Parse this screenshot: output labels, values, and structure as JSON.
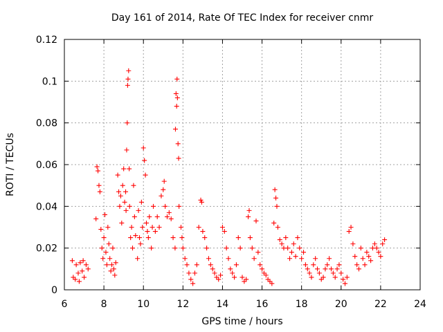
{
  "chart_data": {
    "type": "scatter",
    "title": "Day 161 of 2014, Rate Of TEC Index for receiver cnmr",
    "xlabel": "GPS time / hours",
    "ylabel": "ROTI / TECUs",
    "xlim": [
      6,
      24
    ],
    "ylim": [
      0,
      0.12
    ],
    "x_ticks": [
      6,
      8,
      10,
      12,
      14,
      16,
      18,
      20,
      22,
      24
    ],
    "x_tick_labels": [
      "6",
      "8",
      "10",
      "12",
      "14",
      "16",
      "18",
      "20",
      "22",
      "24"
    ],
    "y_ticks": [
      0,
      0.02,
      0.04,
      0.06,
      0.08,
      0.1,
      0.12
    ],
    "y_tick_labels": [
      "0",
      "0.02",
      "0.04",
      "0.06",
      "0.08",
      "0.1",
      "0.12"
    ],
    "grid": true,
    "marker": "+",
    "color": "#ff0000",
    "series": [
      {
        "name": "ROTI",
        "points": [
          [
            6.4,
            0.014
          ],
          [
            6.45,
            0.006
          ],
          [
            6.55,
            0.005
          ],
          [
            6.6,
            0.012
          ],
          [
            6.7,
            0.008
          ],
          [
            6.75,
            0.004
          ],
          [
            6.8,
            0.013
          ],
          [
            6.9,
            0.009
          ],
          [
            6.95,
            0.014
          ],
          [
            7.0,
            0.006
          ],
          [
            7.1,
            0.012
          ],
          [
            7.2,
            0.01
          ],
          [
            7.6,
            0.034
          ],
          [
            7.65,
            0.059
          ],
          [
            7.7,
            0.057
          ],
          [
            7.75,
            0.05
          ],
          [
            7.8,
            0.047
          ],
          [
            7.85,
            0.029
          ],
          [
            7.9,
            0.02
          ],
          [
            7.95,
            0.015
          ],
          [
            8.0,
            0.025
          ],
          [
            8.05,
            0.036
          ],
          [
            8.1,
            0.018
          ],
          [
            8.15,
            0.012
          ],
          [
            8.2,
            0.03
          ],
          [
            8.25,
            0.022
          ],
          [
            8.3,
            0.015
          ],
          [
            8.35,
            0.009
          ],
          [
            8.4,
            0.012
          ],
          [
            8.45,
            0.02
          ],
          [
            8.5,
            0.01
          ],
          [
            8.55,
            0.007
          ],
          [
            8.6,
            0.013
          ],
          [
            8.7,
            0.055
          ],
          [
            8.75,
            0.047
          ],
          [
            8.8,
            0.04
          ],
          [
            8.85,
            0.045
          ],
          [
            8.9,
            0.032
          ],
          [
            8.95,
            0.05
          ],
          [
            9.0,
            0.058
          ],
          [
            9.05,
            0.042
          ],
          [
            9.1,
            0.047
          ],
          [
            9.12,
            0.038
          ],
          [
            9.15,
            0.067
          ],
          [
            9.18,
            0.08
          ],
          [
            9.2,
            0.098
          ],
          [
            9.22,
            0.101
          ],
          [
            9.25,
            0.105
          ],
          [
            9.28,
            0.058
          ],
          [
            9.3,
            0.04
          ],
          [
            9.35,
            0.025
          ],
          [
            9.4,
            0.03
          ],
          [
            9.45,
            0.02
          ],
          [
            9.5,
            0.05
          ],
          [
            9.55,
            0.035
          ],
          [
            9.6,
            0.026
          ],
          [
            9.7,
            0.015
          ],
          [
            9.75,
            0.038
          ],
          [
            9.8,
            0.025
          ],
          [
            9.85,
            0.022
          ],
          [
            9.9,
            0.042
          ],
          [
            9.95,
            0.03
          ],
          [
            10.0,
            0.068
          ],
          [
            10.05,
            0.062
          ],
          [
            10.1,
            0.055
          ],
          [
            10.15,
            0.032
          ],
          [
            10.2,
            0.028
          ],
          [
            10.25,
            0.025
          ],
          [
            10.3,
            0.035
          ],
          [
            10.4,
            0.02
          ],
          [
            10.45,
            0.03
          ],
          [
            10.5,
            0.04
          ],
          [
            10.6,
            0.028
          ],
          [
            10.7,
            0.035
          ],
          [
            10.8,
            0.03
          ],
          [
            10.9,
            0.045
          ],
          [
            11.0,
            0.048
          ],
          [
            11.05,
            0.052
          ],
          [
            11.1,
            0.04
          ],
          [
            11.2,
            0.035
          ],
          [
            11.3,
            0.037
          ],
          [
            11.4,
            0.034
          ],
          [
            11.5,
            0.025
          ],
          [
            11.6,
            0.02
          ],
          [
            11.62,
            0.077
          ],
          [
            11.65,
            0.094
          ],
          [
            11.68,
            0.088
          ],
          [
            11.7,
            0.101
          ],
          [
            11.72,
            0.092
          ],
          [
            11.75,
            0.07
          ],
          [
            11.78,
            0.063
          ],
          [
            11.8,
            0.04
          ],
          [
            11.9,
            0.03
          ],
          [
            11.95,
            0.025
          ],
          [
            12.0,
            0.02
          ],
          [
            12.1,
            0.015
          ],
          [
            12.2,
            0.012
          ],
          [
            12.3,
            0.008
          ],
          [
            12.4,
            0.005
          ],
          [
            12.5,
            0.003
          ],
          [
            12.6,
            0.008
          ],
          [
            12.7,
            0.012
          ],
          [
            12.8,
            0.03
          ],
          [
            12.9,
            0.043
          ],
          [
            12.95,
            0.042
          ],
          [
            13.0,
            0.028
          ],
          [
            13.1,
            0.025
          ],
          [
            13.2,
            0.02
          ],
          [
            13.3,
            0.015
          ],
          [
            13.4,
            0.012
          ],
          [
            13.5,
            0.01
          ],
          [
            13.6,
            0.008
          ],
          [
            13.7,
            0.006
          ],
          [
            13.8,
            0.005
          ],
          [
            13.9,
            0.007
          ],
          [
            14.0,
            0.03
          ],
          [
            14.1,
            0.028
          ],
          [
            14.2,
            0.02
          ],
          [
            14.3,
            0.015
          ],
          [
            14.4,
            0.01
          ],
          [
            14.5,
            0.008
          ],
          [
            14.6,
            0.006
          ],
          [
            14.7,
            0.012
          ],
          [
            14.8,
            0.025
          ],
          [
            14.9,
            0.02
          ],
          [
            15.0,
            0.006
          ],
          [
            15.1,
            0.004
          ],
          [
            15.2,
            0.005
          ],
          [
            15.3,
            0.035
          ],
          [
            15.35,
            0.038
          ],
          [
            15.4,
            0.025
          ],
          [
            15.5,
            0.02
          ],
          [
            15.6,
            0.015
          ],
          [
            15.7,
            0.033
          ],
          [
            15.8,
            0.018
          ],
          [
            15.9,
            0.012
          ],
          [
            16.0,
            0.01
          ],
          [
            16.1,
            0.008
          ],
          [
            16.2,
            0.007
          ],
          [
            16.3,
            0.005
          ],
          [
            16.4,
            0.004
          ],
          [
            16.5,
            0.003
          ],
          [
            16.6,
            0.032
          ],
          [
            16.65,
            0.048
          ],
          [
            16.7,
            0.044
          ],
          [
            16.75,
            0.04
          ],
          [
            16.8,
            0.03
          ],
          [
            16.9,
            0.024
          ],
          [
            17.0,
            0.022
          ],
          [
            17.1,
            0.02
          ],
          [
            17.2,
            0.025
          ],
          [
            17.3,
            0.02
          ],
          [
            17.4,
            0.015
          ],
          [
            17.5,
            0.018
          ],
          [
            17.6,
            0.022
          ],
          [
            17.7,
            0.016
          ],
          [
            17.8,
            0.025
          ],
          [
            17.9,
            0.02
          ],
          [
            18.0,
            0.015
          ],
          [
            18.1,
            0.018
          ],
          [
            18.2,
            0.012
          ],
          [
            18.3,
            0.01
          ],
          [
            18.4,
            0.008
          ],
          [
            18.5,
            0.006
          ],
          [
            18.6,
            0.012
          ],
          [
            18.7,
            0.015
          ],
          [
            18.8,
            0.01
          ],
          [
            18.9,
            0.008
          ],
          [
            19.0,
            0.005
          ],
          [
            19.1,
            0.006
          ],
          [
            19.2,
            0.01
          ],
          [
            19.3,
            0.012
          ],
          [
            19.4,
            0.015
          ],
          [
            19.5,
            0.01
          ],
          [
            19.6,
            0.008
          ],
          [
            19.7,
            0.006
          ],
          [
            19.8,
            0.01
          ],
          [
            19.9,
            0.012
          ],
          [
            20.0,
            0.008
          ],
          [
            20.1,
            0.005
          ],
          [
            20.2,
            0.003
          ],
          [
            20.3,
            0.006
          ],
          [
            20.4,
            0.028
          ],
          [
            20.5,
            0.03
          ],
          [
            20.6,
            0.022
          ],
          [
            20.7,
            0.016
          ],
          [
            20.8,
            0.012
          ],
          [
            20.9,
            0.01
          ],
          [
            21.0,
            0.02
          ],
          [
            21.1,
            0.015
          ],
          [
            21.2,
            0.012
          ],
          [
            21.3,
            0.018
          ],
          [
            21.4,
            0.016
          ],
          [
            21.5,
            0.014
          ],
          [
            21.6,
            0.02
          ],
          [
            21.7,
            0.022
          ],
          [
            21.8,
            0.02
          ],
          [
            21.9,
            0.018
          ],
          [
            22.0,
            0.016
          ],
          [
            22.1,
            0.022
          ],
          [
            22.2,
            0.024
          ]
        ]
      }
    ]
  }
}
